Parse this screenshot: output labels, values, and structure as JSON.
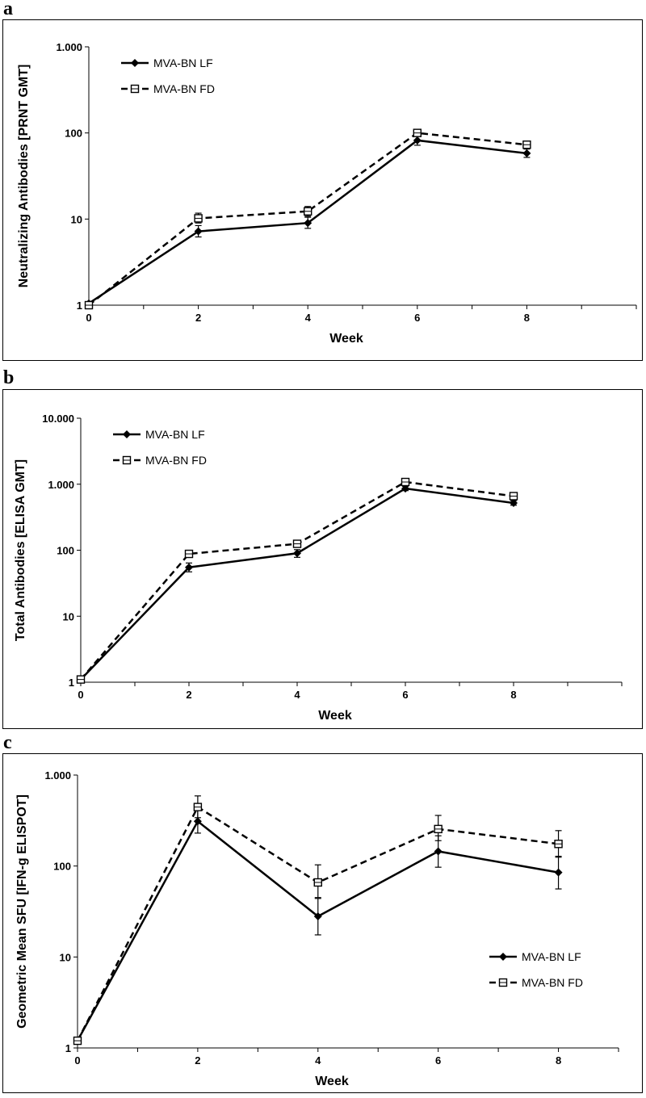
{
  "chart_data": [
    {
      "panel_label": "a",
      "type": "line",
      "x": [
        0,
        2,
        4,
        6,
        8
      ],
      "xlabel": "Week",
      "ylabel": "Neutralizing Antibodies [PRNT GMT]",
      "yscale": "log",
      "ylim": [
        1,
        1000
      ],
      "xlim": [
        0,
        10
      ],
      "x_ticks": [
        0,
        2,
        4,
        6,
        8
      ],
      "y_ticks": [
        1,
        10,
        100,
        1000
      ],
      "y_tick_labels": [
        "1",
        "10",
        "100",
        "1.000"
      ],
      "legend_position": "top-left",
      "series": [
        {
          "name": "MVA-BN LF",
          "marker": "diamond",
          "line": "solid",
          "values": [
            1.05,
            7.2,
            9,
            82,
            58
          ],
          "err_low": [
            1.05,
            6.2,
            7.8,
            72,
            52
          ],
          "err_high": [
            1.05,
            8.4,
            10.5,
            94,
            65
          ]
        },
        {
          "name": "MVA-BN FD",
          "marker": "open-square",
          "line": "dashed",
          "values": [
            1.0,
            10.2,
            12.3,
            100,
            73
          ],
          "err_low": [
            1.0,
            9,
            10.8,
            92,
            67
          ],
          "err_high": [
            1.0,
            11.7,
            14,
            110,
            80
          ]
        }
      ]
    },
    {
      "panel_label": "b",
      "type": "line",
      "x": [
        0,
        2,
        4,
        6,
        8
      ],
      "xlabel": "Week",
      "ylabel": "Total Antibodies [ELISA GMT]",
      "yscale": "log",
      "ylim": [
        1,
        10000
      ],
      "xlim": [
        0,
        10
      ],
      "x_ticks": [
        0,
        2,
        4,
        6,
        8
      ],
      "y_ticks": [
        1,
        10,
        100,
        1000,
        10000
      ],
      "y_tick_labels": [
        "1",
        "10",
        "100",
        "1.000",
        "10.000"
      ],
      "legend_position": "top-left",
      "series": [
        {
          "name": "MVA-BN LF",
          "marker": "diamond",
          "line": "solid",
          "values": [
            1.1,
            55,
            90,
            860,
            520
          ],
          "err_low": [
            1.1,
            47,
            78,
            800,
            480
          ],
          "err_high": [
            1.1,
            64,
            102,
            930,
            565
          ]
        },
        {
          "name": "MVA-BN FD",
          "marker": "open-square",
          "line": "dashed",
          "values": [
            1.1,
            88,
            125,
            1080,
            660
          ],
          "err_low": [
            1.1,
            80,
            114,
            1000,
            610
          ],
          "err_high": [
            1.1,
            97,
            137,
            1160,
            715
          ]
        }
      ]
    },
    {
      "panel_label": "c",
      "type": "line",
      "x": [
        0,
        2,
        4,
        6,
        8
      ],
      "xlabel": "Week",
      "ylabel": "Geometric Mean SFU [IFN-g ELISPOT]",
      "yscale": "log",
      "ylim": [
        1,
        1000
      ],
      "xlim": [
        0,
        9
      ],
      "x_ticks": [
        0,
        2,
        4,
        6,
        8
      ],
      "y_ticks": [
        1,
        10,
        100,
        1000
      ],
      "y_tick_labels": [
        "1",
        "10",
        "100",
        "1.000"
      ],
      "legend_position": "bottom-right",
      "series": [
        {
          "name": "MVA-BN LF",
          "marker": "diamond",
          "line": "solid",
          "values": [
            1.2,
            310,
            28,
            145,
            85
          ],
          "err_low": [
            1.2,
            230,
            17.5,
            97,
            56
          ],
          "err_high": [
            1.2,
            420,
            44,
            215,
            128
          ]
        },
        {
          "name": "MVA-BN FD",
          "marker": "open-square",
          "line": "dashed",
          "values": [
            1.2,
            445,
            66,
            255,
            175
          ],
          "err_low": [
            1.2,
            340,
            45,
            190,
            125
          ],
          "err_high": [
            1.2,
            590,
            103,
            360,
            245
          ]
        }
      ]
    }
  ]
}
